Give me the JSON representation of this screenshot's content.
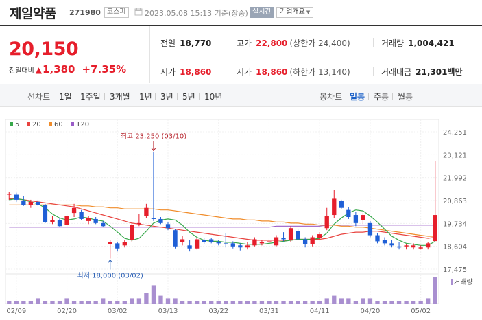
{
  "header": {
    "stock_name": "제일약품",
    "stock_code": "271980",
    "market": "코스피",
    "datetime": "2023.05.08 15:13 기준(장중)",
    "realtime": "실시간",
    "company_info": "기업개요"
  },
  "price": {
    "current": "20,150",
    "change_label": "전일대비",
    "change_value": "1,380",
    "change_rate": "+7.35%",
    "direction_icon": "triangle-up-icon"
  },
  "stats": {
    "prev_close": {
      "label": "전일",
      "value": "18,770"
    },
    "high": {
      "label": "고가",
      "value": "22,800",
      "sub": "(상한가 24,400)"
    },
    "volume": {
      "label": "거래량",
      "value": "1,004,421"
    },
    "open": {
      "label": "시가",
      "value": "18,860"
    },
    "low": {
      "label": "저가",
      "value": "18,860",
      "sub": "(하한가 13,140)"
    },
    "amount": {
      "label": "거래대금",
      "value": "21,301",
      "unit": "백만"
    }
  },
  "tabs": {
    "line_chart": "선차트",
    "periods": [
      "1일",
      "1주일",
      "3개월",
      "1년",
      "3년",
      "5년",
      "10년"
    ],
    "candle_chart": "봉차트",
    "candle_periods": [
      "일봉",
      "주봉",
      "월봉"
    ],
    "active_candle": "일봉"
  },
  "colors": {
    "up": "#e61e2b",
    "down": "#1f5fd6",
    "ma5": "#37a84a",
    "ma20": "#e8433f",
    "ma60": "#f08c2a",
    "ma120": "#9a5cc7",
    "volume": "#a98fd0"
  },
  "chart_data": {
    "type": "candlestick",
    "legend": [
      {
        "name": "5",
        "color": "#37a84a"
      },
      {
        "name": "20",
        "color": "#e8433f"
      },
      {
        "name": "60",
        "color": "#f08c2a"
      },
      {
        "name": "120",
        "color": "#9a5cc7"
      }
    ],
    "y_ticks": [
      "24,251",
      "23,121",
      "21,992",
      "20,863",
      "19,734",
      "18,604",
      "17,475"
    ],
    "ylim": [
      17475,
      24251
    ],
    "x_ticks": [
      {
        "label": "02/09",
        "index": 1
      },
      {
        "label": "02/20",
        "index": 8
      },
      {
        "label": "03/02",
        "index": 15
      },
      {
        "label": "03/13",
        "index": 22
      },
      {
        "label": "03/22",
        "index": 29
      },
      {
        "label": "03/31",
        "index": 36
      },
      {
        "label": "04/11",
        "index": 43
      },
      {
        "label": "04/20",
        "index": 50
      },
      {
        "label": "05/02",
        "index": 57
      }
    ],
    "max_annotation": "최고 23,250 (03/10)",
    "max_index": 20,
    "max_value": 23250,
    "min_annotation": "최저 18,000 (03/02)",
    "min_index": 14,
    "min_value": 18000,
    "volume_label": "거래량",
    "candles": [
      {
        "o": 21150,
        "h": 21300,
        "l": 20900,
        "c": 21200
      },
      {
        "o": 21150,
        "h": 21250,
        "l": 20800,
        "c": 20900
      },
      {
        "o": 20850,
        "h": 21100,
        "l": 20600,
        "c": 20650
      },
      {
        "o": 20650,
        "h": 20900,
        "l": 20500,
        "c": 20800
      },
      {
        "o": 20800,
        "h": 20900,
        "l": 20600,
        "c": 20650
      },
      {
        "o": 20650,
        "h": 20700,
        "l": 19750,
        "c": 19800
      },
      {
        "o": 19800,
        "h": 20100,
        "l": 19700,
        "c": 19900
      },
      {
        "o": 19900,
        "h": 20000,
        "l": 19550,
        "c": 19600
      },
      {
        "o": 19650,
        "h": 20200,
        "l": 19550,
        "c": 20100
      },
      {
        "o": 20250,
        "h": 20700,
        "l": 20050,
        "c": 20500
      },
      {
        "o": 20300,
        "h": 20400,
        "l": 19900,
        "c": 19950
      },
      {
        "o": 19850,
        "h": 20100,
        "l": 19700,
        "c": 20000
      },
      {
        "o": 19950,
        "h": 20050,
        "l": 19700,
        "c": 19750
      },
      {
        "o": 19750,
        "h": 19850,
        "l": 19550,
        "c": 19600
      },
      {
        "o": 18700,
        "h": 18900,
        "l": 18000,
        "c": 18800
      },
      {
        "o": 18750,
        "h": 18800,
        "l": 18350,
        "c": 18500
      },
      {
        "o": 18650,
        "h": 18900,
        "l": 18550,
        "c": 18800
      },
      {
        "o": 18900,
        "h": 19750,
        "l": 18800,
        "c": 19650
      },
      {
        "o": 19700,
        "h": 20200,
        "l": 19600,
        "c": 19750
      },
      {
        "o": 20100,
        "h": 20700,
        "l": 20000,
        "c": 20500
      },
      {
        "o": 20000,
        "h": 23250,
        "l": 19850,
        "c": 19950
      },
      {
        "o": 19950,
        "h": 20050,
        "l": 19700,
        "c": 19750
      },
      {
        "o": 19700,
        "h": 19800,
        "l": 19400,
        "c": 19500
      },
      {
        "o": 19400,
        "h": 19450,
        "l": 18500,
        "c": 18600
      },
      {
        "o": 18800,
        "h": 19100,
        "l": 18650,
        "c": 18950
      },
      {
        "o": 18650,
        "h": 18900,
        "l": 18350,
        "c": 18500
      },
      {
        "o": 18500,
        "h": 19000,
        "l": 18450,
        "c": 18950
      },
      {
        "o": 18900,
        "h": 19000,
        "l": 18700,
        "c": 18800
      },
      {
        "o": 18950,
        "h": 19000,
        "l": 18750,
        "c": 18800
      },
      {
        "o": 18800,
        "h": 18900,
        "l": 18650,
        "c": 18750
      },
      {
        "o": 18750,
        "h": 19250,
        "l": 18550,
        "c": 18700
      },
      {
        "o": 18750,
        "h": 18850,
        "l": 18500,
        "c": 18600
      },
      {
        "o": 18650,
        "h": 18750,
        "l": 18400,
        "c": 18550
      },
      {
        "o": 18550,
        "h": 18800,
        "l": 18450,
        "c": 18650
      },
      {
        "o": 18650,
        "h": 19050,
        "l": 18600,
        "c": 18950
      },
      {
        "o": 18750,
        "h": 18900,
        "l": 18650,
        "c": 18800
      },
      {
        "o": 18800,
        "h": 18950,
        "l": 18700,
        "c": 18850
      },
      {
        "o": 18650,
        "h": 19150,
        "l": 18600,
        "c": 19050
      },
      {
        "o": 19000,
        "h": 19300,
        "l": 18850,
        "c": 18950
      },
      {
        "o": 18900,
        "h": 19600,
        "l": 18800,
        "c": 19500
      },
      {
        "o": 19350,
        "h": 19450,
        "l": 18900,
        "c": 18950
      },
      {
        "o": 18950,
        "h": 19050,
        "l": 18550,
        "c": 18700
      },
      {
        "o": 18700,
        "h": 19150,
        "l": 18600,
        "c": 19050
      },
      {
        "o": 19000,
        "h": 19300,
        "l": 18950,
        "c": 19200
      },
      {
        "o": 19500,
        "h": 20500,
        "l": 19400,
        "c": 20100
      },
      {
        "o": 20150,
        "h": 21400,
        "l": 20000,
        "c": 20950
      },
      {
        "o": 20850,
        "h": 20900,
        "l": 20450,
        "c": 20500
      },
      {
        "o": 20400,
        "h": 20550,
        "l": 19950,
        "c": 20050
      },
      {
        "o": 20150,
        "h": 20300,
        "l": 19600,
        "c": 19750
      },
      {
        "o": 19900,
        "h": 20250,
        "l": 19700,
        "c": 20150
      },
      {
        "o": 19750,
        "h": 19850,
        "l": 19050,
        "c": 19150
      },
      {
        "o": 19150,
        "h": 19250,
        "l": 18750,
        "c": 18850
      },
      {
        "o": 18900,
        "h": 19050,
        "l": 18650,
        "c": 18750
      },
      {
        "o": 18750,
        "h": 18900,
        "l": 18550,
        "c": 18650
      },
      {
        "o": 18600,
        "h": 18800,
        "l": 18450,
        "c": 18550
      },
      {
        "o": 18600,
        "h": 18700,
        "l": 18450,
        "c": 18650
      },
      {
        "o": 18550,
        "h": 18750,
        "l": 18450,
        "c": 18650
      },
      {
        "o": 18500,
        "h": 18650,
        "l": 18450,
        "c": 18550
      },
      {
        "o": 18550,
        "h": 18800,
        "l": 18450,
        "c": 18750
      },
      {
        "o": 18860,
        "h": 22800,
        "l": 18860,
        "c": 20150
      }
    ],
    "volumes": [
      1,
      1,
      1,
      1,
      2,
      1,
      1,
      1,
      2,
      1,
      1,
      1,
      1,
      2,
      1,
      1,
      1,
      2,
      2,
      4,
      7,
      3,
      2,
      2,
      1,
      1,
      1,
      1,
      1,
      1,
      1,
      1,
      1,
      1,
      1,
      1,
      1,
      1,
      1,
      1,
      1,
      1,
      1,
      1,
      2,
      3,
      2,
      2,
      1,
      2,
      2,
      1,
      1,
      1,
      1,
      1,
      1,
      1,
      2,
      10
    ],
    "ma": {
      "ma5": [
        20900,
        20950,
        20900,
        20800,
        20700,
        20500,
        20200,
        20000,
        19900,
        19950,
        20050,
        20000,
        19900,
        19850,
        19600,
        19300,
        19000,
        18900,
        19000,
        19350,
        19750,
        19900,
        19950,
        19900,
        19650,
        19300,
        19050,
        18900,
        18850,
        18850,
        18800,
        18800,
        18750,
        18700,
        18700,
        18700,
        18750,
        18800,
        18850,
        18900,
        18950,
        18950,
        18950,
        19000,
        19250,
        19700,
        20000,
        20250,
        20400,
        20350,
        20100,
        19800,
        19450,
        19100,
        18900,
        18750,
        18700,
        18650,
        18650,
        18850
      ],
      "ma20": [
        20950,
        20950,
        20900,
        20850,
        20800,
        20750,
        20700,
        20650,
        20600,
        20550,
        20450,
        20350,
        20250,
        20150,
        20050,
        19950,
        19850,
        19750,
        19700,
        19650,
        19600,
        19550,
        19500,
        19450,
        19400,
        19350,
        19300,
        19250,
        19200,
        19150,
        19100,
        19050,
        19000,
        18950,
        18900,
        18900,
        18900,
        18900,
        18900,
        18900,
        18950,
        18950,
        18950,
        18950,
        19000,
        19100,
        19200,
        19250,
        19300,
        19300,
        19350,
        19350,
        19300,
        19250,
        19200,
        19150,
        19100,
        19050,
        19000,
        19050
      ],
      "ma60": [
        20650,
        20650,
        20650,
        20650,
        20650,
        20650,
        20650,
        20650,
        20650,
        20650,
        20600,
        20600,
        20550,
        20550,
        20500,
        20500,
        20450,
        20450,
        20450,
        20450,
        20450,
        20400,
        20400,
        20350,
        20300,
        20250,
        20200,
        20150,
        20100,
        20050,
        20000,
        19950,
        19950,
        19900,
        19900,
        19850,
        19850,
        19800,
        19800,
        19750,
        19750,
        19700,
        19700,
        19650,
        19650,
        19650,
        19600,
        19600,
        19550,
        19550,
        19500,
        19450,
        19400,
        19350,
        19300,
        19250,
        19200,
        19150,
        19100,
        19100
      ],
      "ma120": [
        19550,
        19550,
        19550,
        19550,
        19550,
        19550,
        19550,
        19550,
        19550,
        19550,
        19550,
        19550,
        19550,
        19550,
        19550,
        19550,
        19550,
        19550,
        19550,
        19550,
        19550,
        19550,
        19550,
        19550,
        19550,
        19550,
        19550,
        19550,
        19550,
        19550,
        19550,
        19550,
        19550,
        19550,
        19550,
        19550,
        19550,
        19600,
        19600,
        19600,
        19600,
        19600,
        19600,
        19600,
        19650,
        19650,
        19650,
        19650,
        19650,
        19650,
        19650,
        19650,
        19650,
        19650,
        19650,
        19650,
        19650,
        19650,
        19650,
        19650
      ]
    }
  }
}
